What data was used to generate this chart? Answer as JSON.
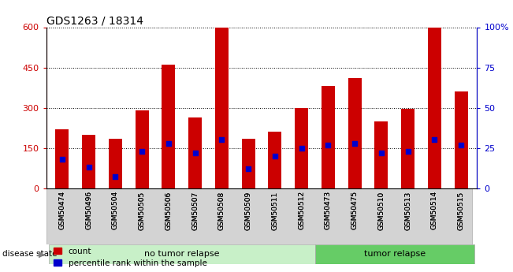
{
  "title": "GDS1263 / 18314",
  "samples": [
    "GSM50474",
    "GSM50496",
    "GSM50504",
    "GSM50505",
    "GSM50506",
    "GSM50507",
    "GSM50508",
    "GSM50509",
    "GSM50511",
    "GSM50512",
    "GSM50473",
    "GSM50475",
    "GSM50510",
    "GSM50513",
    "GSM50514",
    "GSM50515"
  ],
  "counts": [
    220,
    200,
    185,
    290,
    460,
    265,
    600,
    185,
    210,
    300,
    380,
    410,
    250,
    295,
    600,
    360
  ],
  "percentile_ranks": [
    18,
    13,
    7,
    23,
    28,
    22,
    30,
    12,
    20,
    25,
    27,
    28,
    22,
    23,
    30,
    27
  ],
  "group_labels": [
    "no tumor relapse",
    "tumor relapse"
  ],
  "no_tumor_count": 10,
  "tumor_count": 6,
  "bar_color": "#cc0000",
  "marker_color": "#0000cc",
  "left_yaxis_color": "#cc0000",
  "right_yaxis_color": "#0000cc",
  "left_ylim": [
    0,
    600
  ],
  "right_ylim": [
    0,
    100
  ],
  "left_yticks": [
    0,
    150,
    300,
    450,
    600
  ],
  "right_yticks": [
    0,
    25,
    50,
    75,
    100
  ],
  "right_yticklabels": [
    "0",
    "25",
    "50",
    "75",
    "100%"
  ],
  "bg_color": "#ffffff",
  "grid_color": "#000000",
  "bar_width": 0.5,
  "figsize": [
    6.51,
    3.45
  ],
  "dpi": 100,
  "tick_box_color": "#d3d3d3",
  "group1_color": "#c8f0c8",
  "group2_color": "#66cc66"
}
